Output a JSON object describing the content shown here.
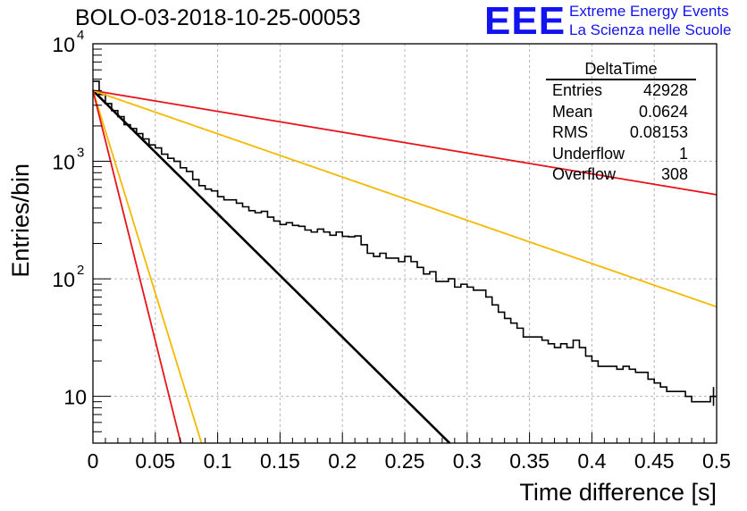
{
  "header": {
    "run_title": "BOLO-03-2018-10-25-00053",
    "logo_text": "EEE",
    "logo_line1": "Extreme Energy Events",
    "logo_line2": "La Scienza nelle Scuole"
  },
  "stats": {
    "title": "DeltaTime",
    "rows": [
      {
        "label": "Entries",
        "value": "42928"
      },
      {
        "label": "Mean",
        "value": "0.0624"
      },
      {
        "label": "RMS",
        "value": "0.08153"
      },
      {
        "label": "Underflow",
        "value": "1"
      },
      {
        "label": "Overflow",
        "value": "308"
      }
    ]
  },
  "colors": {
    "histogram": "#000000",
    "fit_main": "#000000",
    "red": "#e8141b",
    "orange": "#f5b800",
    "grid": "#b4b4b4",
    "logo": "#1313f0"
  },
  "chart_data": {
    "type": "line",
    "xlabel": "Time difference [s]",
    "ylabel": "Entries/bin",
    "xlim": [
      0,
      0.5
    ],
    "ylim": [
      4,
      10000
    ],
    "yscale": "log",
    "grid": true,
    "x_ticks": [
      "0",
      "0.05",
      "0.1",
      "0.15",
      "0.2",
      "0.25",
      "0.3",
      "0.35",
      "0.4",
      "0.45",
      "0.5"
    ],
    "y_ticks": [
      {
        "value": 10,
        "label": "10"
      },
      {
        "value": 100,
        "label": "10",
        "exp": "2"
      },
      {
        "value": 1000,
        "label": "10",
        "exp": "3"
      },
      {
        "value": 10000,
        "label": "10",
        "exp": "4"
      }
    ],
    "histogram": {
      "bin_width": 0.005,
      "values": [
        4800,
        3700,
        3100,
        2700,
        2400,
        2050,
        1900,
        1720,
        1550,
        1380,
        1300,
        1150,
        1060,
        1000,
        880,
        820,
        700,
        620,
        580,
        560,
        500,
        470,
        470,
        440,
        410,
        380,
        365,
        375,
        335,
        310,
        290,
        300,
        285,
        280,
        260,
        250,
        265,
        250,
        235,
        250,
        230,
        228,
        232,
        195,
        165,
        155,
        165,
        150,
        150,
        140,
        155,
        140,
        125,
        110,
        115,
        95,
        95,
        100,
        85,
        90,
        85,
        80,
        80,
        70,
        60,
        52,
        46,
        42,
        38,
        32,
        32,
        32,
        30,
        28,
        26,
        28,
        26,
        30,
        26,
        22,
        20,
        18,
        18,
        18,
        17,
        18,
        17,
        16,
        16,
        14,
        13,
        12,
        11,
        11,
        11,
        10,
        9,
        9,
        9,
        10
      ]
    },
    "series": [
      {
        "color": "black",
        "y0": 4000,
        "tau": 0.0414,
        "width": 2.6
      },
      {
        "color": "red",
        "y0": 4000,
        "tau": 0.245,
        "width": 1.8
      },
      {
        "color": "orange",
        "y0": 4000,
        "tau": 0.118,
        "width": 1.8
      },
      {
        "color": "orange",
        "y0": 4000,
        "tau": 0.0126,
        "width": 1.8
      },
      {
        "color": "red",
        "y0": 4000,
        "tau": 0.0102,
        "width": 1.8
      }
    ]
  }
}
